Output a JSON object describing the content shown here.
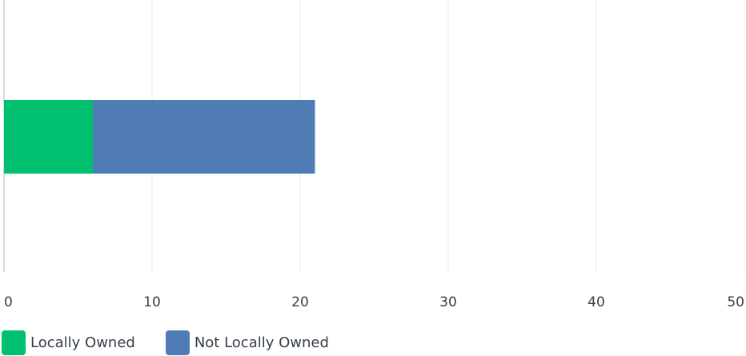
{
  "chart_data": {
    "type": "bar",
    "orientation": "horizontal",
    "stacked": true,
    "categories": [
      ""
    ],
    "series": [
      {
        "name": "Locally Owned",
        "values": [
          6
        ],
        "color": "#00bf6f"
      },
      {
        "name": "Not Locally Owned",
        "values": [
          15
        ],
        "color": "#507cb6"
      }
    ],
    "xlim": [
      0,
      50
    ],
    "xticks": [
      "0",
      "10",
      "20",
      "30",
      "40",
      "50"
    ],
    "grid": true,
    "legend_position": "bottom-left"
  }
}
